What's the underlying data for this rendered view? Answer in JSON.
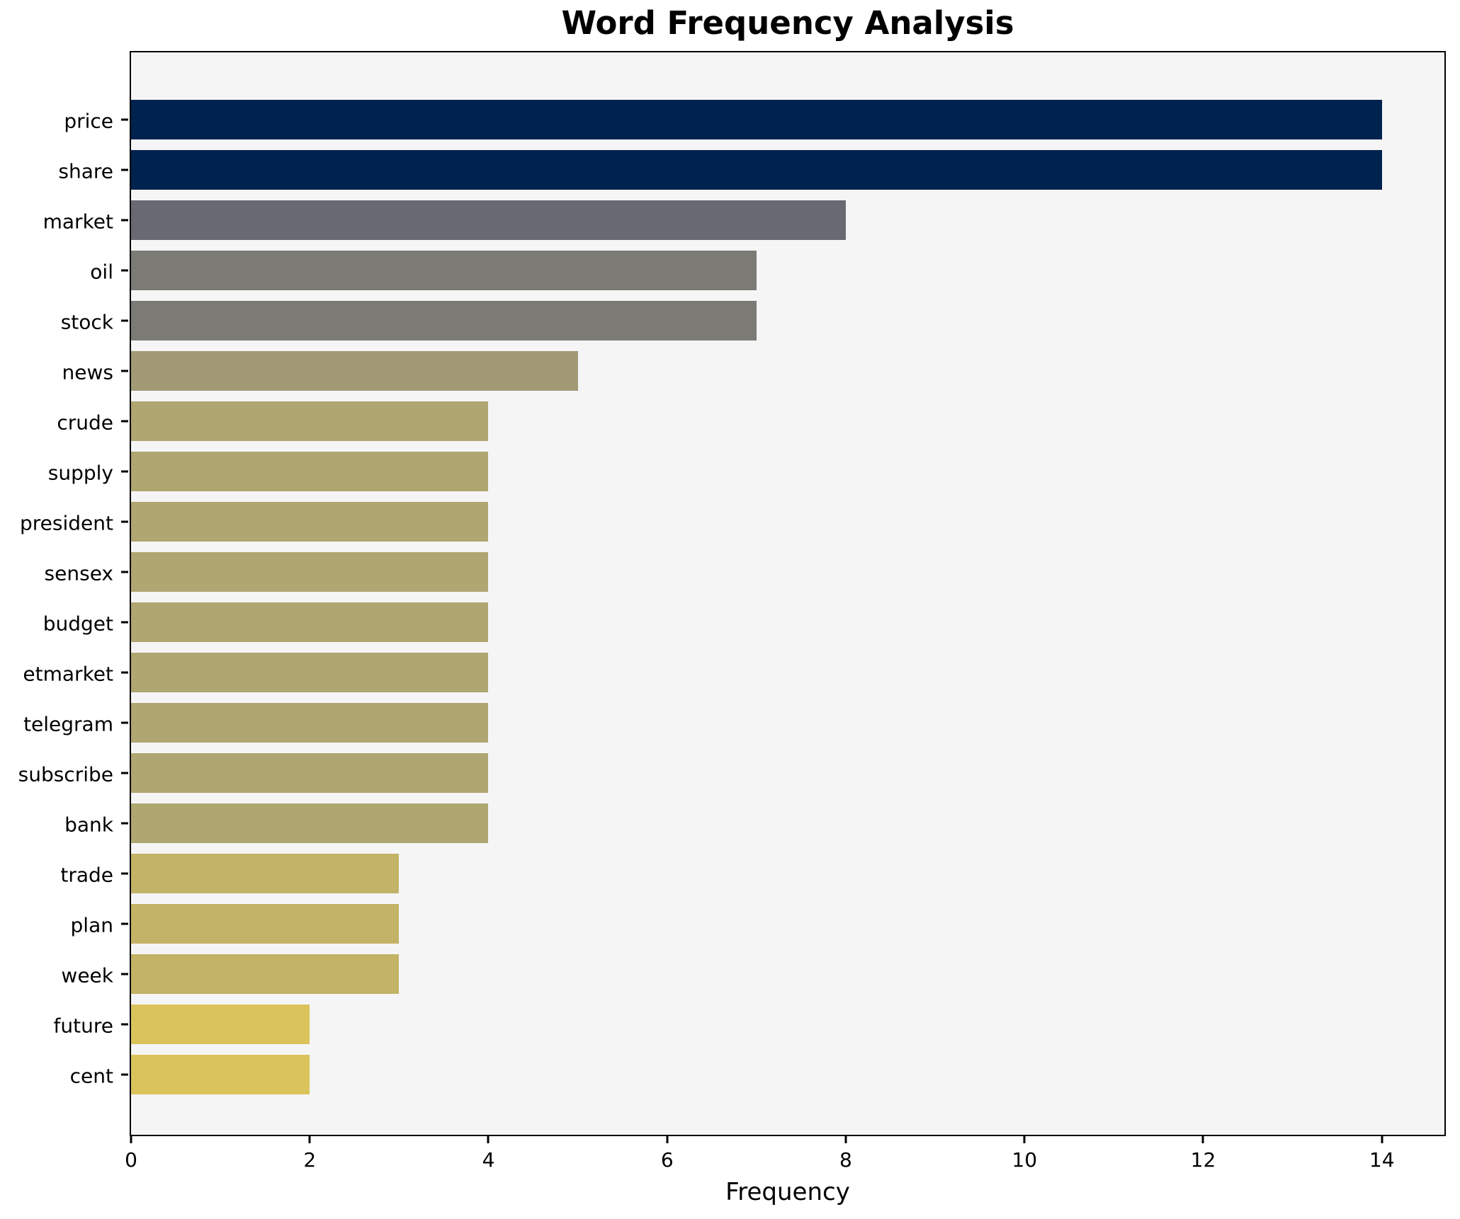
{
  "chart_data": {
    "type": "bar",
    "orientation": "horizontal",
    "title": "Word Frequency Analysis",
    "xlabel": "Frequency",
    "ylabel": "",
    "categories": [
      "price",
      "share",
      "market",
      "oil",
      "stock",
      "news",
      "crude",
      "supply",
      "president",
      "sensex",
      "budget",
      "etmarket",
      "telegram",
      "subscribe",
      "bank",
      "trade",
      "plan",
      "week",
      "future",
      "cent"
    ],
    "values": [
      14,
      14,
      8,
      7,
      7,
      5,
      4,
      4,
      4,
      4,
      4,
      4,
      4,
      4,
      4,
      3,
      3,
      3,
      2,
      2
    ],
    "bar_colors": [
      "#00224e",
      "#00224e",
      "#696a71",
      "#7b7a74",
      "#7b7a74",
      "#a19a74",
      "#afa671",
      "#afa671",
      "#afa671",
      "#afa671",
      "#afa671",
      "#afa671",
      "#afa671",
      "#afa671",
      "#afa671",
      "#c2b366",
      "#c2b366",
      "#c2b366",
      "#dbc35c",
      "#dbc35c"
    ],
    "xlim": [
      0,
      14.7
    ],
    "xticks": [
      0,
      2,
      4,
      6,
      8,
      10,
      12,
      14
    ],
    "grid": false,
    "legend": null,
    "plot_background": "#f5f5f6",
    "figure_background": "#ffffff",
    "spine_color": "#000000"
  }
}
